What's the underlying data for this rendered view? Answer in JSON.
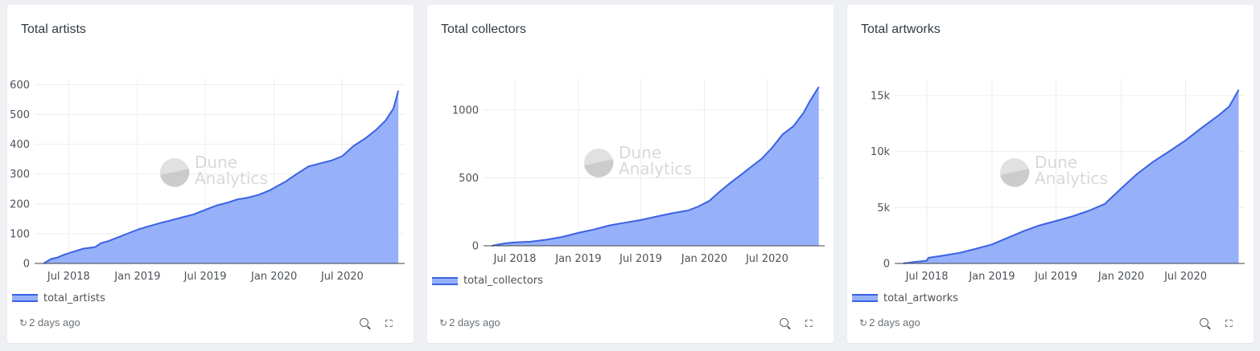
{
  "watermark": {
    "line1": "Dune",
    "line2": "Analytics"
  },
  "colors": {
    "fill": "#96b0fa",
    "line": "#3b62e3",
    "grid": "#ebedef",
    "axis": "#3f4246"
  },
  "icons": {
    "refresh": "refresh-icon",
    "zoom": "zoom-in-icon",
    "expand": "expand-icon"
  },
  "cards": [
    {
      "title": "Total artists",
      "legend": "total_artists",
      "updated": "2 days ago",
      "chart_data": {
        "type": "area",
        "title": "Total artists",
        "xlabel": "",
        "ylabel": "",
        "xlim": [
          "2018-04-01",
          "2020-12-15"
        ],
        "ylim": [
          0,
          620
        ],
        "yticks": [
          0,
          100,
          200,
          300,
          400,
          500,
          600
        ],
        "ytick_labels": [
          "0",
          "100",
          "200",
          "300",
          "400",
          "500",
          "600"
        ],
        "xticks": [
          "2018-07-01",
          "2019-01-01",
          "2019-07-01",
          "2020-01-01",
          "2020-07-01"
        ],
        "xtick_labels": [
          "Jul 2018",
          "Jan 2019",
          "Jul 2019",
          "Jan 2020",
          "Jul 2020"
        ],
        "grid": true,
        "legend_position": "bottom-left",
        "series": [
          {
            "name": "total_artists",
            "x": [
              "2018-04-25",
              "2018-05-15",
              "2018-06-01",
              "2018-06-20",
              "2018-07-15",
              "2018-08-10",
              "2018-09-10",
              "2018-09-25",
              "2018-10-15",
              "2018-11-15",
              "2018-12-15",
              "2019-01-05",
              "2019-02-01",
              "2019-03-01",
              "2019-04-01",
              "2019-05-01",
              "2019-06-01",
              "2019-07-01",
              "2019-08-01",
              "2019-09-01",
              "2019-09-25",
              "2019-10-20",
              "2019-11-20",
              "2019-12-20",
              "2020-01-10",
              "2020-02-01",
              "2020-03-01",
              "2020-04-01",
              "2020-05-01",
              "2020-06-01",
              "2020-07-01",
              "2020-08-01",
              "2020-09-01",
              "2020-10-01",
              "2020-10-25",
              "2020-11-15",
              "2020-11-28"
            ],
            "y": [
              0,
              15,
              20,
              30,
              40,
              50,
              55,
              68,
              75,
              90,
              105,
              115,
              125,
              135,
              145,
              155,
              165,
              180,
              195,
              205,
              215,
              220,
              230,
              245,
              260,
              275,
              300,
              325,
              335,
              345,
              360,
              395,
              420,
              450,
              480,
              520,
              580
            ]
          }
        ]
      }
    },
    {
      "title": "Total collectors",
      "legend": "total_collectors",
      "updated": "2 days ago",
      "chart_data": {
        "type": "area",
        "title": "Total collectors",
        "xlabel": "",
        "ylabel": "",
        "xlim": [
          "2018-04-01",
          "2020-12-15"
        ],
        "ylim": [
          0,
          1230
        ],
        "yticks": [
          0,
          500,
          1000
        ],
        "ytick_labels": [
          "0",
          "500",
          "1000"
        ],
        "xticks": [
          "2018-07-01",
          "2019-01-01",
          "2019-07-01",
          "2020-01-01",
          "2020-07-01"
        ],
        "xtick_labels": [
          "Jul 2018",
          "Jan 2019",
          "Jul 2019",
          "Jan 2020",
          "Jul 2020"
        ],
        "grid": true,
        "legend_position": "bottom-left",
        "series": [
          {
            "name": "total_collectors",
            "x": [
              "2018-04-25",
              "2018-06-01",
              "2018-07-01",
              "2018-08-15",
              "2018-10-01",
              "2018-11-15",
              "2019-01-01",
              "2019-02-15",
              "2019-04-01",
              "2019-05-15",
              "2019-07-01",
              "2019-08-15",
              "2019-10-01",
              "2019-11-15",
              "2019-12-15",
              "2020-01-15",
              "2020-02-15",
              "2020-03-15",
              "2020-04-15",
              "2020-05-15",
              "2020-06-15",
              "2020-07-15",
              "2020-08-15",
              "2020-09-15",
              "2020-10-15",
              "2020-11-01",
              "2020-11-28"
            ],
            "y": [
              0,
              18,
              25,
              30,
              45,
              65,
              95,
              120,
              150,
              170,
              190,
              215,
              240,
              260,
              290,
              330,
              400,
              460,
              520,
              580,
              640,
              720,
              820,
              880,
              980,
              1060,
              1170
            ]
          }
        ]
      }
    },
    {
      "title": "Total artworks",
      "legend": "total_artworks",
      "updated": "2 days ago",
      "chart_data": {
        "type": "area",
        "title": "Total artworks",
        "xlabel": "",
        "ylabel": "",
        "xlim": [
          "2018-04-01",
          "2020-12-15"
        ],
        "ylim": [
          0,
          16500
        ],
        "yticks": [
          0,
          5000,
          10000,
          15000
        ],
        "ytick_labels": [
          "0",
          "5k",
          "10k",
          "15k"
        ],
        "xticks": [
          "2018-07-01",
          "2019-01-01",
          "2019-07-01",
          "2020-01-01",
          "2020-07-01"
        ],
        "xtick_labels": [
          "Jul 2018",
          "Jan 2019",
          "Jul 2019",
          "Jan 2020",
          "Jul 2020"
        ],
        "grid": true,
        "legend_position": "bottom-left",
        "series": [
          {
            "name": "total_artworks",
            "x": [
              "2018-04-25",
              "2018-06-01",
              "2018-07-01",
              "2018-07-05",
              "2018-08-15",
              "2018-10-01",
              "2018-11-15",
              "2019-01-01",
              "2019-02-15",
              "2019-04-01",
              "2019-05-15",
              "2019-07-01",
              "2019-08-15",
              "2019-10-01",
              "2019-11-15",
              "2020-01-01",
              "2020-02-15",
              "2020-04-01",
              "2020-05-15",
              "2020-07-01",
              "2020-08-15",
              "2020-10-01",
              "2020-11-01",
              "2020-11-28"
            ],
            "y": [
              0,
              150,
              250,
              500,
              700,
              950,
              1300,
              1700,
              2300,
              2900,
              3400,
              3800,
              4200,
              4700,
              5300,
              6700,
              8000,
              9100,
              10000,
              11000,
              12100,
              13200,
              14000,
              15500
            ]
          }
        ]
      }
    }
  ]
}
